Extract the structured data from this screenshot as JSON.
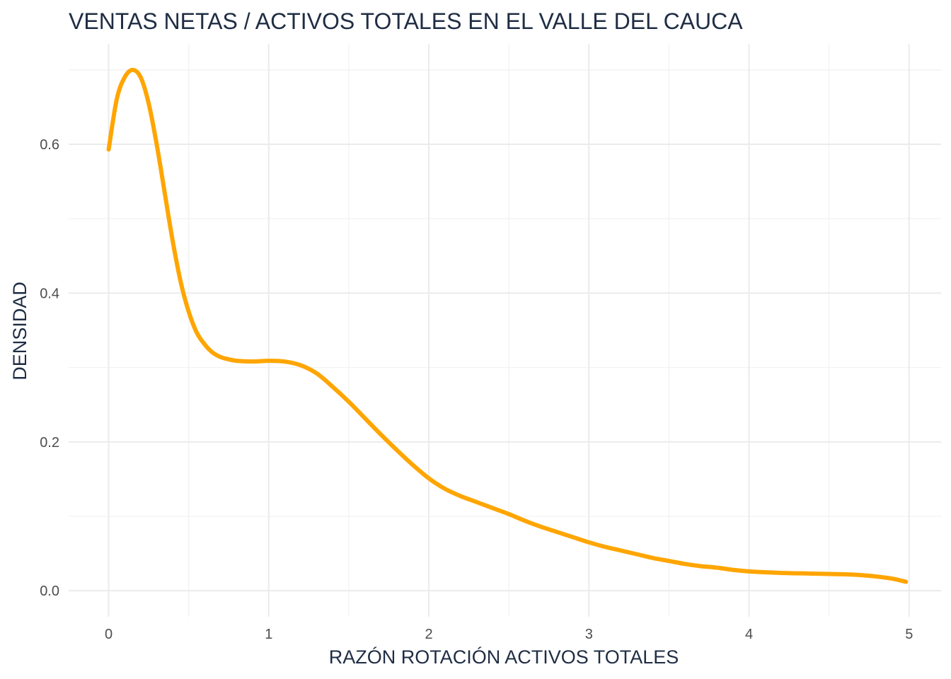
{
  "chart_data": {
    "type": "line",
    "title": "VENTAS NETAS / ACTIVOS TOTALES EN EL VALLE DEL CAUCA",
    "xlabel": "RAZÓN ROTACIÓN ACTIVOS TOTALES",
    "ylabel": "DENSIDAD",
    "xlim": [
      -0.25,
      5.2
    ],
    "ylim": [
      -0.035,
      0.735
    ],
    "x_ticks": [
      0,
      1,
      2,
      3,
      4,
      5
    ],
    "x_tick_labels": [
      "0",
      "1",
      "2",
      "3",
      "4",
      "5"
    ],
    "x_minor_ticks": [
      0.5,
      1.5,
      2.5,
      3.5,
      4.5
    ],
    "y_ticks": [
      0.0,
      0.2,
      0.4,
      0.6
    ],
    "y_tick_labels": [
      "0.0",
      "0.2",
      "0.4",
      "0.6"
    ],
    "y_minor_ticks": [
      0.1,
      0.3,
      0.5,
      0.7
    ],
    "grid": true,
    "legend": "none",
    "line_color": "#FFA500",
    "series": [
      {
        "x": [
          0.0,
          0.05,
          0.1,
          0.15,
          0.2,
          0.25,
          0.3,
          0.35,
          0.4,
          0.45,
          0.5,
          0.55,
          0.6,
          0.65,
          0.7,
          0.75,
          0.8,
          0.9,
          1.0,
          1.1,
          1.2,
          1.3,
          1.4,
          1.5,
          1.6,
          1.7,
          1.8,
          1.9,
          2.0,
          2.1,
          2.2,
          2.3,
          2.4,
          2.5,
          2.6,
          2.7,
          2.8,
          2.9,
          3.0,
          3.1,
          3.2,
          3.3,
          3.4,
          3.5,
          3.6,
          3.7,
          3.8,
          3.9,
          4.0,
          4.2,
          4.4,
          4.6,
          4.7,
          4.8,
          4.9,
          4.98
        ],
        "y": [
          0.593,
          0.66,
          0.69,
          0.7,
          0.69,
          0.655,
          0.6,
          0.535,
          0.47,
          0.415,
          0.375,
          0.347,
          0.331,
          0.32,
          0.314,
          0.311,
          0.309,
          0.308,
          0.309,
          0.308,
          0.303,
          0.292,
          0.274,
          0.254,
          0.232,
          0.21,
          0.189,
          0.169,
          0.151,
          0.137,
          0.127,
          0.119,
          0.111,
          0.103,
          0.094,
          0.086,
          0.079,
          0.072,
          0.065,
          0.059,
          0.054,
          0.049,
          0.044,
          0.04,
          0.036,
          0.033,
          0.031,
          0.028,
          0.026,
          0.024,
          0.023,
          0.022,
          0.021,
          0.019,
          0.016,
          0.012
        ]
      }
    ]
  }
}
